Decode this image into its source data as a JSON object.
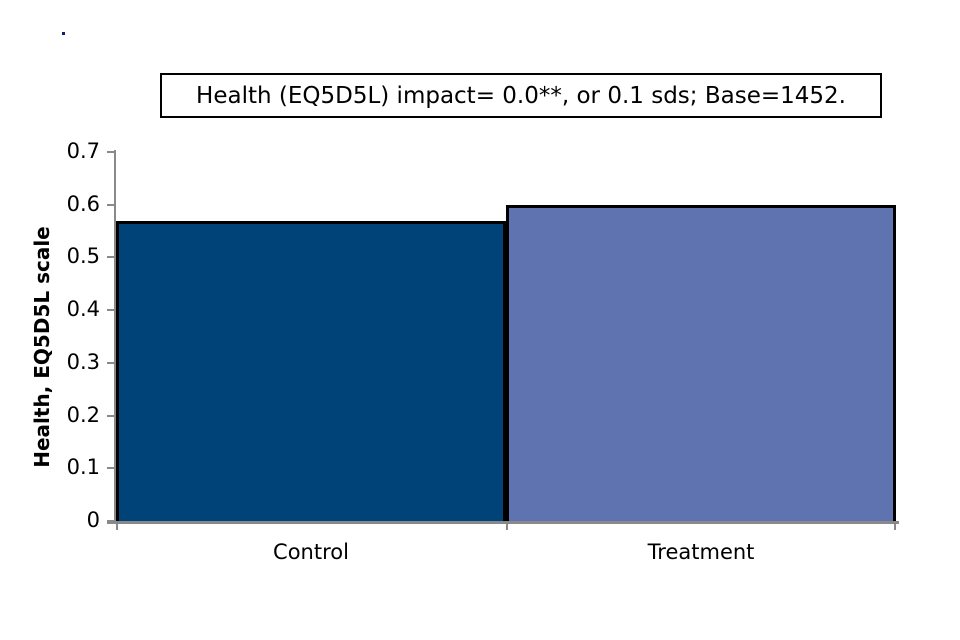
{
  "stray_dot": {
    "color": "#101f63"
  },
  "chart_data": {
    "type": "bar",
    "title": "Health (EQ5D5L) impact= 0.0**, or 0.1 sds; Base=1452.",
    "categories": [
      "Control",
      "Treatment"
    ],
    "values": [
      0.57,
      0.6
    ],
    "xlabel": "",
    "ylabel": "Health, EQ5D5L scale",
    "ylim": [
      0,
      0.7
    ],
    "yticks": [
      0,
      0.1,
      0.2,
      0.3,
      0.4,
      0.5,
      0.6,
      0.7
    ],
    "ytick_labels": [
      "0",
      "0.1",
      "0.2",
      "0.3",
      "0.4",
      "0.5",
      "0.6",
      "0.7"
    ],
    "bar_colors": [
      "#004379",
      "#5F73B0"
    ],
    "bar_border_color": "#000000",
    "axis_color": "#898989",
    "grid": false,
    "legend": null,
    "gap_width_percent": 0
  }
}
